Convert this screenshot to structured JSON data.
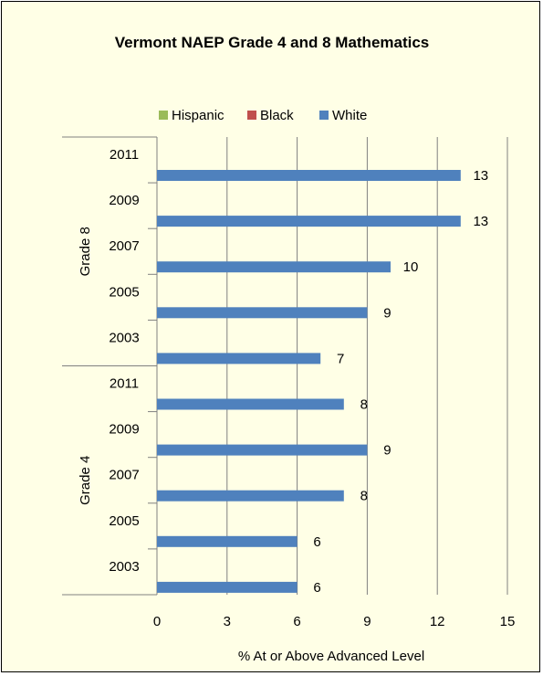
{
  "chart_data": {
    "type": "bar",
    "orientation": "horizontal",
    "title": "Vermont NAEP Grade 4 and 8 Mathematics",
    "xlabel": "% At or Above Advanced Level",
    "ylabel": "",
    "xlim": [
      0,
      15
    ],
    "x_ticks": [
      0,
      3,
      6,
      9,
      12,
      15
    ],
    "grid": "vertical",
    "legend_position": "top",
    "groups": [
      {
        "label": "Grade 8",
        "years": [
          "2011",
          "2009",
          "2007",
          "2005",
          "2003"
        ]
      },
      {
        "label": "Grade 4",
        "years": [
          "2011",
          "2009",
          "2007",
          "2005",
          "2003"
        ]
      }
    ],
    "series": [
      {
        "name": "Hispanic",
        "color": "#9bbb59",
        "values": [
          null,
          null,
          null,
          null,
          null,
          null,
          null,
          null,
          null,
          null
        ]
      },
      {
        "name": "Black",
        "color": "#c0504d",
        "values": [
          null,
          null,
          null,
          null,
          null,
          null,
          null,
          null,
          null,
          null
        ]
      },
      {
        "name": "White",
        "color": "#4f81bd",
        "values": [
          13,
          13,
          10,
          9,
          7,
          8,
          9,
          8,
          6,
          6
        ]
      }
    ]
  }
}
